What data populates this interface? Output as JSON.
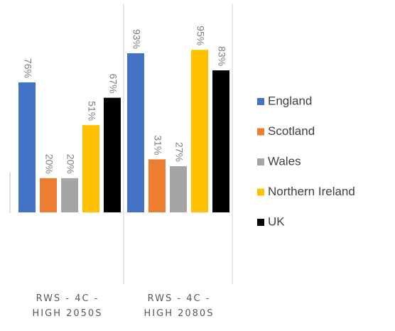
{
  "chart_data": {
    "type": "bar",
    "categories": [
      [
        "RWS - 4C -",
        "HIGH 2050S"
      ],
      [
        "RWS - 4C -",
        "HIGH 2080S"
      ]
    ],
    "series": [
      {
        "name": "England",
        "color": "#4472c4",
        "values": [
          76,
          93
        ],
        "labels": [
          "76%",
          "93%"
        ]
      },
      {
        "name": "Scotland",
        "color": "#ed7d31",
        "values": [
          20,
          31
        ],
        "labels": [
          "20%",
          "31%"
        ]
      },
      {
        "name": "Wales",
        "color": "#a5a5a5",
        "values": [
          20,
          27
        ],
        "labels": [
          "20%",
          "27%"
        ]
      },
      {
        "name": "Northern Ireland",
        "color": "#ffc000",
        "values": [
          51,
          95
        ],
        "labels": [
          "51%",
          "95%"
        ]
      },
      {
        "name": "UK",
        "color": "#000000",
        "values": [
          67,
          83
        ],
        "labels": [
          "67%",
          "83%"
        ]
      }
    ],
    "ylim": [
      0,
      100
    ],
    "grid": false,
    "legend_position": "right"
  }
}
